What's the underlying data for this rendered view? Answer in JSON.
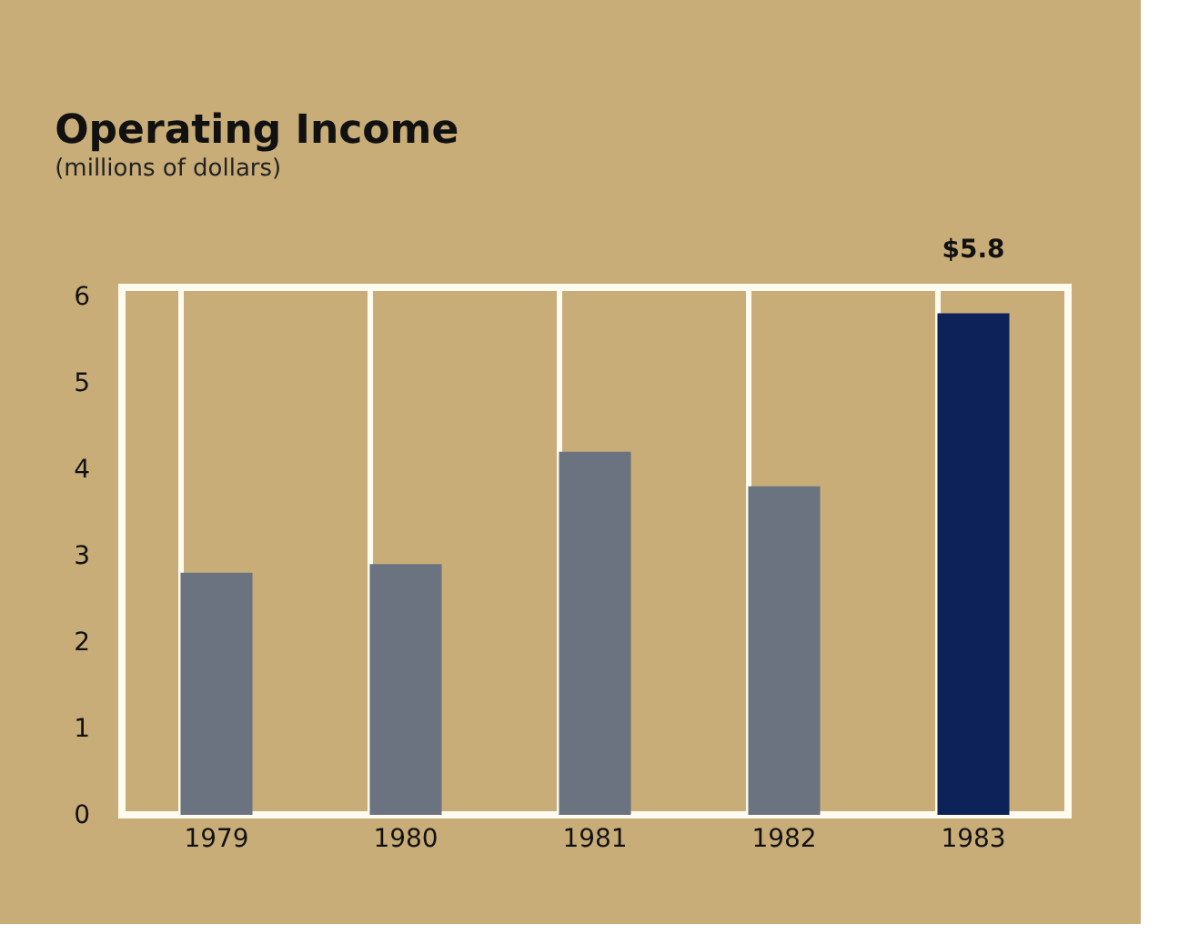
{
  "chart_data": {
    "type": "bar",
    "title": "Operating Income",
    "subtitle": "(millions of dollars)",
    "categories": [
      "1979",
      "1980",
      "1981",
      "1982",
      "1983"
    ],
    "values": [
      2.8,
      2.9,
      4.2,
      3.8,
      5.8
    ],
    "colors": [
      "#6b7280",
      "#6b7280",
      "#6b7280",
      "#6b7280",
      "#0c2258"
    ],
    "value_labels": [
      null,
      null,
      null,
      null,
      "$5.8"
    ],
    "ylim": [
      0,
      6.1
    ],
    "yticks": [
      0,
      1,
      2,
      3,
      4,
      5,
      6
    ],
    "grid": "x"
  }
}
